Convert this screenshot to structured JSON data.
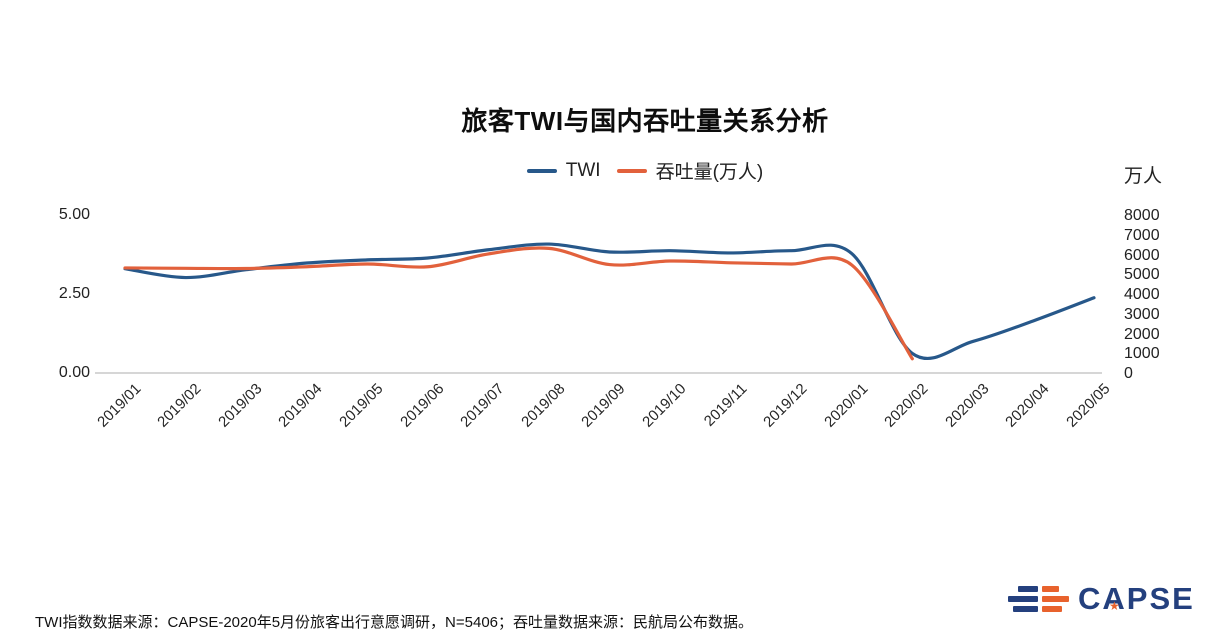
{
  "chart": {
    "title": "旅客TWI与国内吞吐量关系分析",
    "right_axis_unit": "万人"
  },
  "chart_data": {
    "type": "line",
    "title": "旅客TWI与国内吞吐量关系分析",
    "grid": false,
    "legend_position": "top",
    "categories": [
      "2019/01",
      "2019/02",
      "2019/03",
      "2019/04",
      "2019/05",
      "2019/06",
      "2019/07",
      "2019/08",
      "2019/09",
      "2019/10",
      "2019/11",
      "2019/12",
      "2020/01",
      "2020/02",
      "2020/03",
      "2020/04",
      "2020/05"
    ],
    "series": [
      {
        "id": "twi",
        "name": "TWI",
        "axis": "left",
        "color": "#27588a",
        "values": [
          3.3,
          3.02,
          3.27,
          3.48,
          3.58,
          3.64,
          3.9,
          4.08,
          3.83,
          3.87,
          3.8,
          3.87,
          3.78,
          0.62,
          1.0,
          1.65,
          2.38
        ]
      },
      {
        "id": "throughput",
        "name": "吞吐量(万人)",
        "axis": "right",
        "color": "#e2613c",
        "values": [
          5320,
          5300,
          5290,
          5380,
          5520,
          5380,
          6030,
          6310,
          5490,
          5670,
          5580,
          5520,
          5470,
          720,
          null,
          null,
          null
        ]
      }
    ],
    "left_axis": {
      "range": [
        0,
        5
      ],
      "ticks": [
        {
          "label": "0.00",
          "value": 0
        },
        {
          "label": "2.50",
          "value": 2.5
        },
        {
          "label": "5.00",
          "value": 5
        }
      ]
    },
    "right_axis": {
      "range": [
        0,
        8000
      ],
      "unit": "万人",
      "ticks": [
        {
          "label": "0",
          "value": 0
        },
        {
          "label": "1000",
          "value": 1000
        },
        {
          "label": "2000",
          "value": 2000
        },
        {
          "label": "3000",
          "value": 3000
        },
        {
          "label": "4000",
          "value": 4000
        },
        {
          "label": "5000",
          "value": 5000
        },
        {
          "label": "6000",
          "value": 6000
        },
        {
          "label": "7000",
          "value": 7000
        },
        {
          "label": "8000",
          "value": 8000
        }
      ]
    },
    "axis_line_color": "#c9c9c9"
  },
  "footer": {
    "source_note": "TWI指数数据来源：CAPSE-2020年5月份旅客出行意愿调研，N=5406；吞吐量数据来源：民航局公布数据。"
  },
  "logo": {
    "text": "CAPSE",
    "star": "★",
    "blue": "#24407e",
    "orange": "#e8622d"
  }
}
